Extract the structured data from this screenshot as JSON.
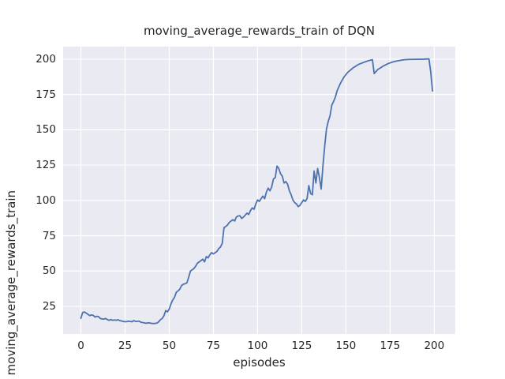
{
  "window": {
    "kind": "matplotlib-seaborn-figure"
  },
  "colors": {
    "figure_background": "#ffffff",
    "axes_background": "#eaeaf2",
    "gridline": "#ffffff",
    "line": "#4c72b0",
    "text": "#262626"
  },
  "chart_data": {
    "type": "line",
    "title": "moving_average_rewards_train of DQN",
    "xlabel": "episodes",
    "ylabel": "moving_average_rewards_train",
    "legend": null,
    "grid": true,
    "x_ticks": [
      0,
      25,
      50,
      75,
      100,
      125,
      150,
      175,
      200
    ],
    "y_ticks": [
      25,
      50,
      75,
      100,
      125,
      150,
      175,
      200
    ],
    "xlim": [
      -10.05,
      211.9
    ],
    "ylim": [
      5.4,
      208.9
    ],
    "series": [
      {
        "name": "moving_average_rewards_train",
        "color": "#4c72b0",
        "points": [
          [
            0,
            16.5
          ],
          [
            1,
            20.6
          ],
          [
            2,
            21.0
          ],
          [
            3,
            20.2
          ],
          [
            4,
            19.3
          ],
          [
            5,
            18.4
          ],
          [
            6,
            18.9
          ],
          [
            7,
            18.6
          ],
          [
            8,
            17.4
          ],
          [
            9,
            17.9
          ],
          [
            10,
            17.7
          ],
          [
            11,
            16.4
          ],
          [
            12,
            16.1
          ],
          [
            13,
            15.9
          ],
          [
            14,
            16.4
          ],
          [
            15,
            15.6
          ],
          [
            16,
            15.1
          ],
          [
            17,
            15.6
          ],
          [
            18,
            15.1
          ],
          [
            19,
            15.3
          ],
          [
            20,
            15.1
          ],
          [
            21,
            15.5
          ],
          [
            22,
            14.9
          ],
          [
            23,
            14.6
          ],
          [
            24,
            14.3
          ],
          [
            25,
            14.1
          ],
          [
            26,
            14.2
          ],
          [
            27,
            14.5
          ],
          [
            28,
            14.3
          ],
          [
            29,
            14.1
          ],
          [
            30,
            14.9
          ],
          [
            31,
            14.2
          ],
          [
            32,
            14.4
          ],
          [
            33,
            14.5
          ],
          [
            34,
            13.7
          ],
          [
            35,
            13.5
          ],
          [
            36,
            13.2
          ],
          [
            37,
            13.0
          ],
          [
            38,
            13.3
          ],
          [
            39,
            13.2
          ],
          [
            40,
            12.9
          ],
          [
            41,
            12.8
          ],
          [
            42,
            12.9
          ],
          [
            43,
            13.1
          ],
          [
            44,
            14.0
          ],
          [
            45,
            15.5
          ],
          [
            46,
            16.4
          ],
          [
            47,
            18.3
          ],
          [
            48,
            22.0
          ],
          [
            49,
            21.1
          ],
          [
            50,
            23.0
          ],
          [
            51,
            26.8
          ],
          [
            52,
            29.5
          ],
          [
            53,
            31.4
          ],
          [
            54,
            35.0
          ],
          [
            55,
            35.9
          ],
          [
            56,
            37.2
          ],
          [
            57,
            39.7
          ],
          [
            58,
            40.6
          ],
          [
            59,
            41.0
          ],
          [
            60,
            41.6
          ],
          [
            61,
            45.5
          ],
          [
            62,
            50.0
          ],
          [
            63,
            50.8
          ],
          [
            64,
            51.8
          ],
          [
            65,
            53.5
          ],
          [
            66,
            55.6
          ],
          [
            67,
            56.5
          ],
          [
            68,
            57.4
          ],
          [
            69,
            58.4
          ],
          [
            70,
            56.5
          ],
          [
            71,
            60.2
          ],
          [
            72,
            59.3
          ],
          [
            73,
            61.5
          ],
          [
            74,
            63.0
          ],
          [
            75,
            62.1
          ],
          [
            76,
            63.0
          ],
          [
            77,
            63.9
          ],
          [
            78,
            65.8
          ],
          [
            79,
            67.0
          ],
          [
            80,
            69.5
          ],
          [
            81,
            80.7
          ],
          [
            82,
            81.5
          ],
          [
            83,
            82.6
          ],
          [
            84,
            84.4
          ],
          [
            85,
            85.4
          ],
          [
            86,
            86.3
          ],
          [
            87,
            85.4
          ],
          [
            88,
            88.2
          ],
          [
            89,
            89.0
          ],
          [
            90,
            89.1
          ],
          [
            91,
            87.2
          ],
          [
            92,
            88.2
          ],
          [
            93,
            89.5
          ],
          [
            94,
            91.0
          ],
          [
            95,
            90.0
          ],
          [
            96,
            92.8
          ],
          [
            97,
            94.7
          ],
          [
            98,
            93.7
          ],
          [
            99,
            97.5
          ],
          [
            100,
            100.3
          ],
          [
            101,
            99.3
          ],
          [
            102,
            101.2
          ],
          [
            103,
            103.0
          ],
          [
            104,
            101.2
          ],
          [
            105,
            105.9
          ],
          [
            106,
            108.7
          ],
          [
            107,
            106.8
          ],
          [
            108,
            109.6
          ],
          [
            109,
            115.2
          ],
          [
            110,
            116.1
          ],
          [
            111,
            124.3
          ],
          [
            112,
            122.6
          ],
          [
            113,
            118.9
          ],
          [
            114,
            117.1
          ],
          [
            115,
            112.3
          ],
          [
            116,
            113.3
          ],
          [
            117,
            111.4
          ],
          [
            118,
            106.8
          ],
          [
            119,
            104.0
          ],
          [
            120,
            100.3
          ],
          [
            121,
            98.4
          ],
          [
            122,
            97.5
          ],
          [
            123,
            95.6
          ],
          [
            124,
            96.5
          ],
          [
            125,
            98.4
          ],
          [
            126,
            100.3
          ],
          [
            127,
            99.3
          ],
          [
            128,
            101.2
          ],
          [
            129,
            110.5
          ],
          [
            130,
            104.9
          ],
          [
            131,
            104.0
          ],
          [
            132,
            120.8
          ],
          [
            133,
            112.3
          ],
          [
            134,
            122.6
          ],
          [
            135,
            116.1
          ],
          [
            136,
            108.0
          ],
          [
            137,
            124.5
          ],
          [
            138,
            138.5
          ],
          [
            139,
            150.6
          ],
          [
            140,
            156.0
          ],
          [
            141,
            159.9
          ],
          [
            142,
            167.4
          ],
          [
            143,
            170.0
          ],
          [
            144,
            173.0
          ],
          [
            145,
            177.6
          ],
          [
            147,
            183.2
          ],
          [
            149,
            187.5
          ],
          [
            151,
            190.6
          ],
          [
            154,
            193.8
          ],
          [
            157,
            196.2
          ],
          [
            160,
            197.7
          ],
          [
            163,
            199.0
          ],
          [
            165,
            199.6
          ],
          [
            166,
            189.8
          ],
          [
            168,
            192.6
          ],
          [
            171,
            195.0
          ],
          [
            174,
            196.9
          ],
          [
            177,
            198.2
          ],
          [
            180,
            199.0
          ],
          [
            183,
            199.6
          ],
          [
            186,
            199.8
          ],
          [
            190,
            199.9
          ],
          [
            194,
            200.0
          ],
          [
            197,
            200.2
          ],
          [
            198,
            191.0
          ],
          [
            199,
            177.5
          ]
        ]
      }
    ]
  }
}
